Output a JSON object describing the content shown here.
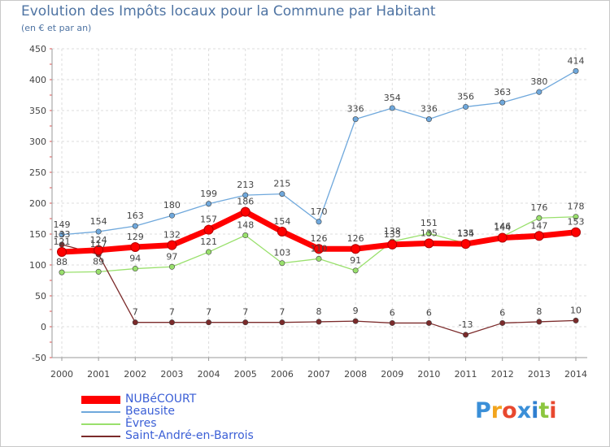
{
  "header": {
    "title": "Evolution des Impôts locaux pour la Commune par Habitant",
    "subtitle": "(en € et par an)"
  },
  "logo": {
    "text": "Proxiti",
    "colors": [
      "#3a8fd8",
      "#f2a51e",
      "#e8482f",
      "#3a8fd8",
      "#2f7fd0",
      "#8cc63f",
      "#e8482f"
    ]
  },
  "chart_data": {
    "type": "line",
    "title": "Evolution des Impôts locaux pour la Commune par Habitant",
    "subtitle": "(en € et par an)",
    "xlabel": "",
    "ylabel": "",
    "x": [
      "2000",
      "2001",
      "2002",
      "2003",
      "2004",
      "2005",
      "2006",
      "2007",
      "2008",
      "2009",
      "2010",
      "2011",
      "2012",
      "2013",
      "2014"
    ],
    "ylim": [
      -50,
      450
    ],
    "yticks": [
      -50,
      0,
      50,
      100,
      150,
      200,
      250,
      300,
      350,
      400,
      450
    ],
    "grid": true,
    "legend_position": "bottom-left",
    "series": [
      {
        "name": "NUBéCOURT",
        "color": "#ff0000",
        "values": [
          121,
          124,
          129,
          132,
          157,
          186,
          154,
          126,
          126,
          133,
          135,
          134,
          144,
          147,
          153
        ],
        "labels": [
          "121",
          "124",
          "129",
          "132",
          "157",
          "186",
          "154",
          "126",
          "126",
          "133",
          "135",
          "134",
          "144",
          "147",
          "153"
        ]
      },
      {
        "name": "Beausite",
        "color": "#6fa8dc",
        "values": [
          149,
          154,
          163,
          180,
          199,
          213,
          215,
          170,
          336,
          354,
          336,
          356,
          363,
          380,
          414
        ],
        "labels": [
          "149",
          "154",
          "163",
          "180",
          "199",
          "213",
          "215",
          "170",
          "336",
          "354",
          "336",
          "356",
          "363",
          "380",
          "414"
        ]
      },
      {
        "name": "Èvres",
        "color": "#99e06c",
        "values": [
          88,
          89,
          94,
          97,
          121,
          148,
          103,
          110,
          91,
          138,
          151,
          135,
          146,
          176,
          178
        ],
        "labels": [
          "88",
          "89",
          "94",
          "97",
          "121",
          "148",
          "103",
          "110",
          "91",
          "138",
          "151",
          "135",
          "146",
          "176",
          "178"
        ]
      },
      {
        "name": "Saint-André-en-Barrois",
        "color": "#7b2a2a",
        "values": [
          133,
          117,
          7,
          7,
          7,
          7,
          7,
          8,
          9,
          6,
          6,
          -13,
          6,
          8,
          10
        ],
        "labels": [
          "133",
          "117",
          "7",
          "7",
          "7",
          "7",
          "7",
          "8",
          "9",
          "6",
          "6",
          "-13",
          "6",
          "8",
          "10"
        ]
      }
    ]
  }
}
